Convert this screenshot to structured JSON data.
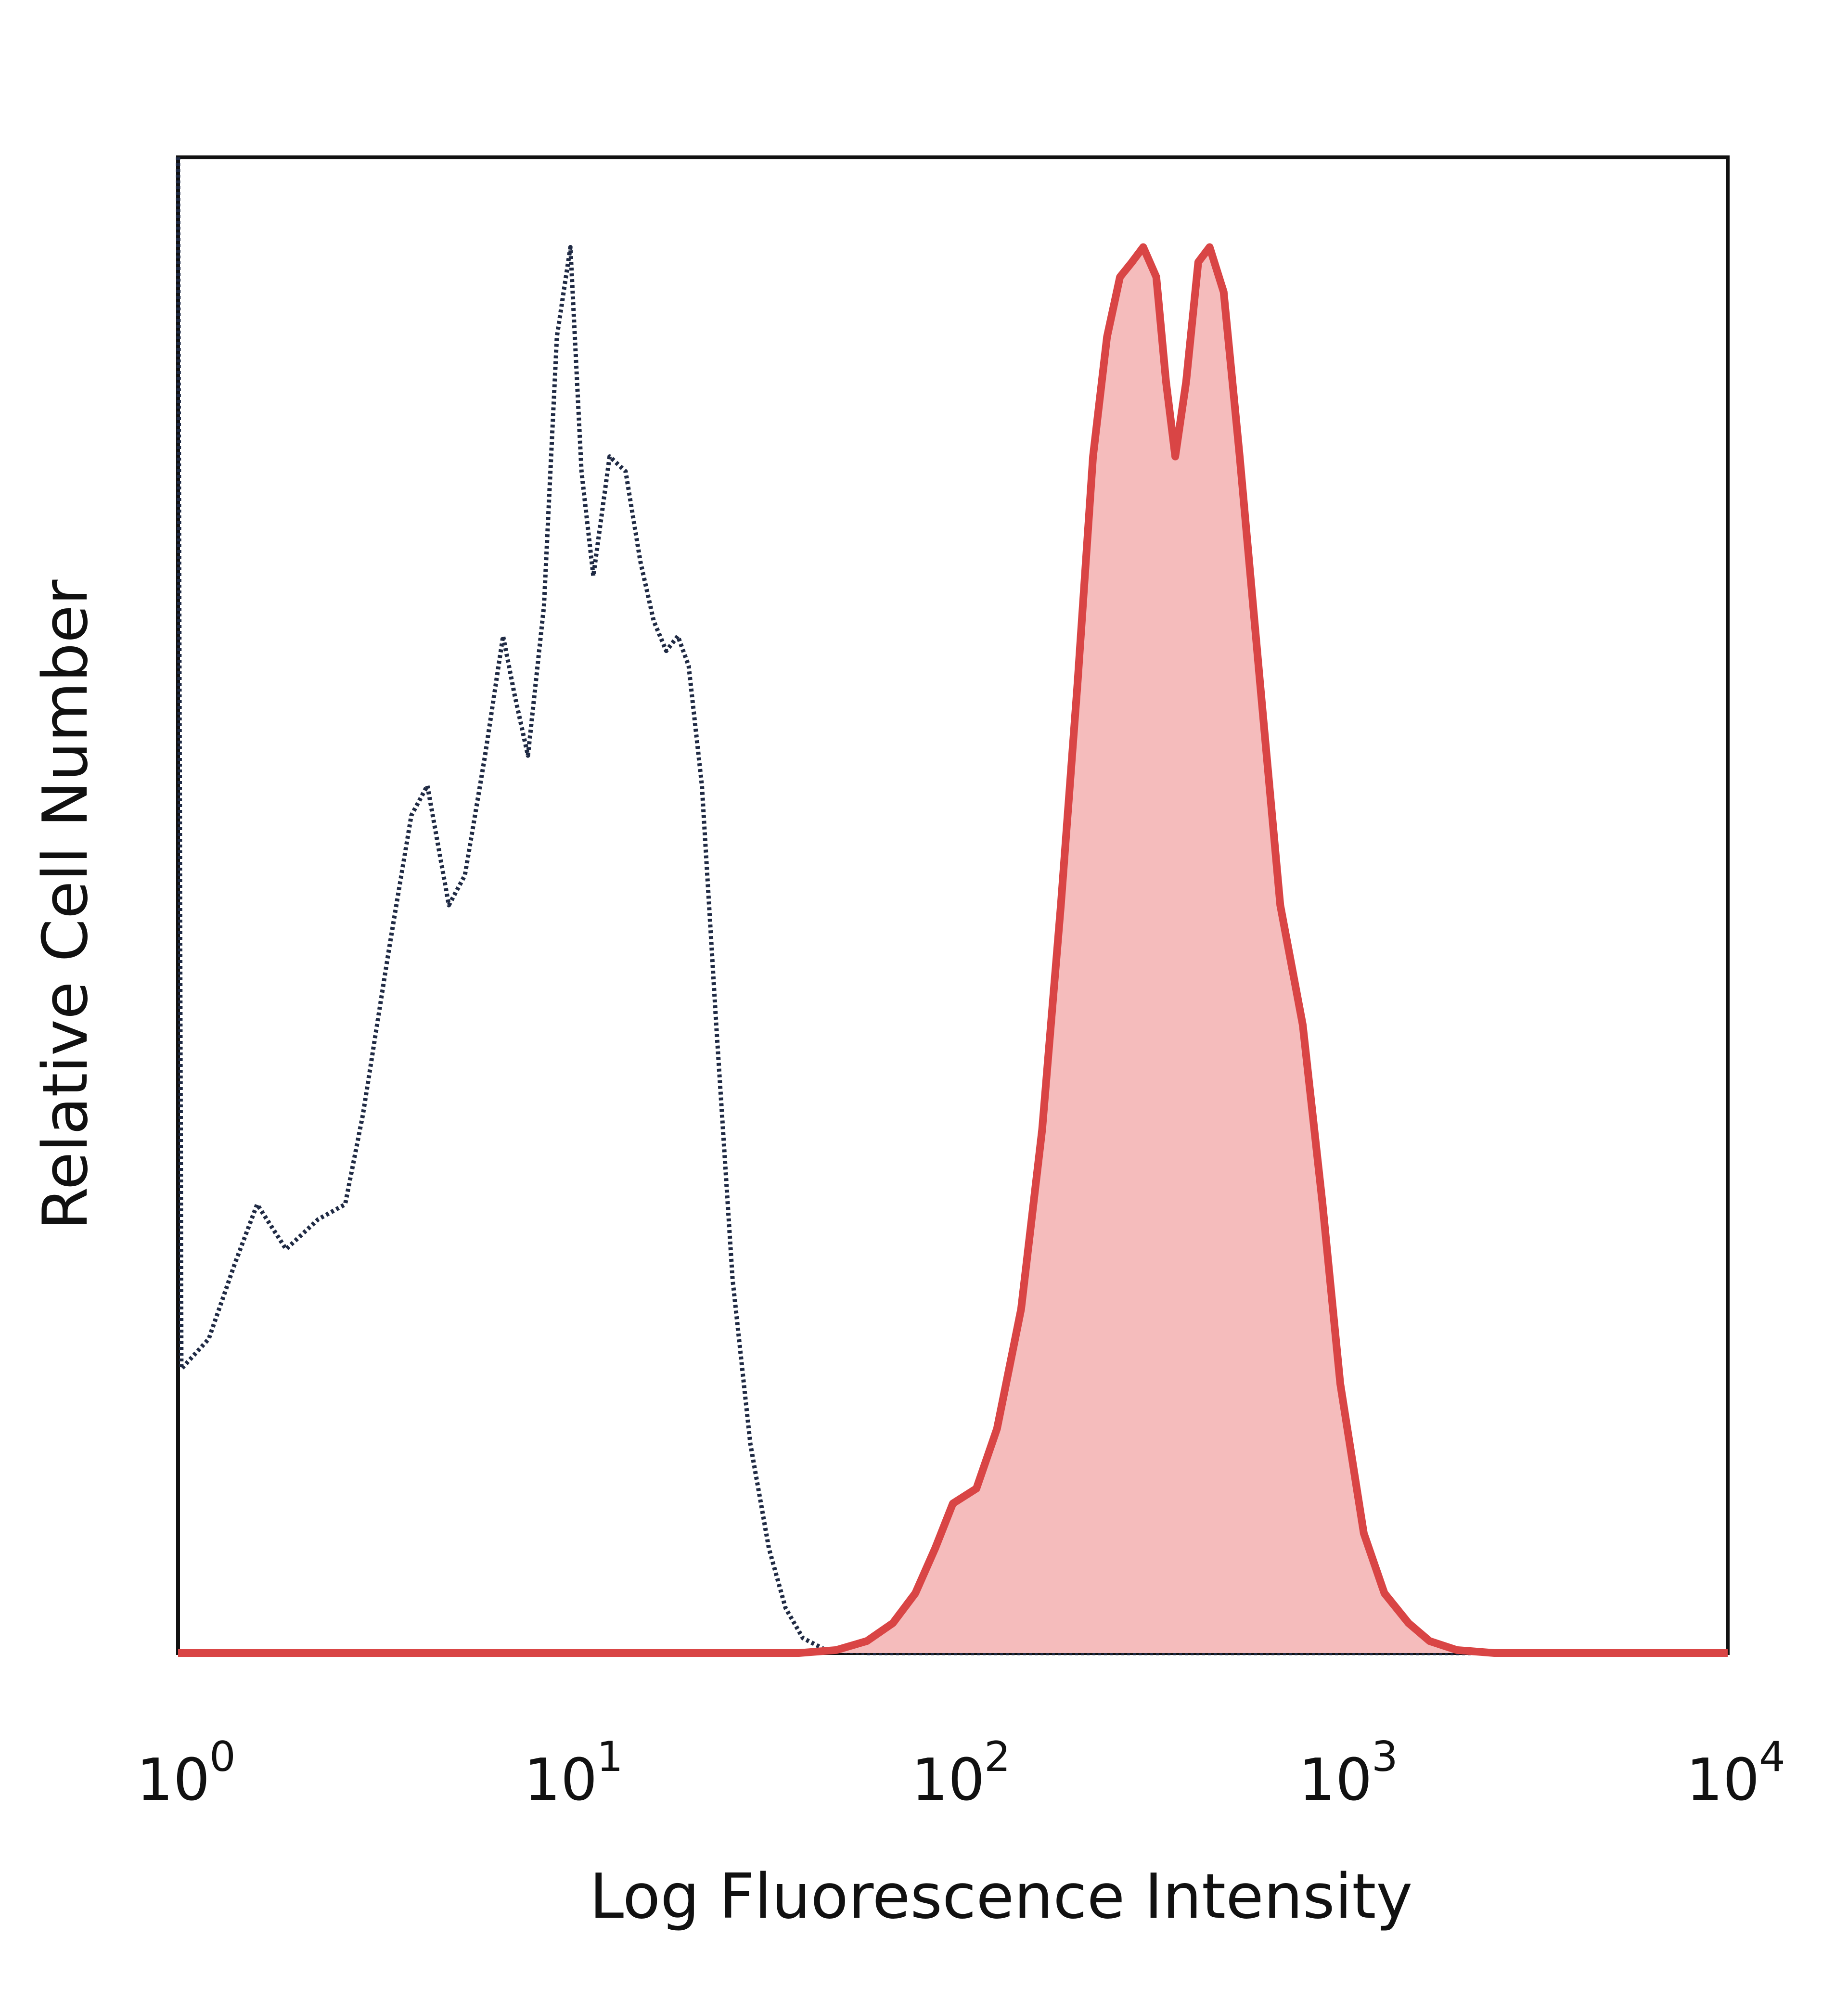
{
  "chart_data": {
    "type": "area",
    "xlabel": "Log Fluorescence Intensity",
    "ylabel": "Relative Cell Number",
    "x_scale": "log",
    "xlim": [
      1,
      10000
    ],
    "ylim": [
      0,
      100
    ],
    "x_ticks": [
      {
        "value": 1,
        "base": "10",
        "exp": "0"
      },
      {
        "value": 10,
        "base": "10",
        "exp": "1"
      },
      {
        "value": 100,
        "base": "10",
        "exp": "2"
      },
      {
        "value": 1000,
        "base": "10",
        "exp": "3"
      },
      {
        "value": 10000,
        "base": "10",
        "exp": "4"
      }
    ],
    "grid": false,
    "legend": "none",
    "series": [
      {
        "style": "dotted",
        "color": "#1f2a44",
        "fill": false,
        "points": [
          [
            1.0,
            100
          ],
          [
            1.02,
            19
          ],
          [
            1.2,
            21
          ],
          [
            1.4,
            26
          ],
          [
            1.6,
            30
          ],
          [
            1.9,
            27
          ],
          [
            2.3,
            29
          ],
          [
            2.7,
            30
          ],
          [
            3.0,
            36
          ],
          [
            3.5,
            47
          ],
          [
            4.0,
            56
          ],
          [
            4.4,
            58
          ],
          [
            5.0,
            50
          ],
          [
            5.5,
            52
          ],
          [
            6.2,
            60
          ],
          [
            6.9,
            68
          ],
          [
            7.4,
            64
          ],
          [
            8.0,
            60
          ],
          [
            8.8,
            70
          ],
          [
            9.5,
            88
          ],
          [
            10.3,
            94
          ],
          [
            11.0,
            79
          ],
          [
            11.8,
            72
          ],
          [
            13.0,
            80
          ],
          [
            14.3,
            79
          ],
          [
            15.6,
            73
          ],
          [
            16.9,
            69
          ],
          [
            18.2,
            67
          ],
          [
            19.5,
            68
          ],
          [
            20.8,
            66
          ],
          [
            22.5,
            58
          ],
          [
            24.5,
            42
          ],
          [
            27.0,
            25
          ],
          [
            30.0,
            14
          ],
          [
            33.5,
            7
          ],
          [
            37.0,
            3
          ],
          [
            41.0,
            1
          ],
          [
            47.0,
            0.2
          ],
          [
            60.0,
            0
          ],
          [
            100.0,
            0
          ],
          [
            1000.0,
            0
          ],
          [
            10000.0,
            0
          ]
        ]
      },
      {
        "style": "solid",
        "color": "#d94545",
        "fill": true,
        "fill_color": "#f5bcbc",
        "points": [
          [
            1.0,
            0
          ],
          [
            40.0,
            0
          ],
          [
            50.0,
            0.2
          ],
          [
            60.0,
            0.8
          ],
          [
            70.0,
            2
          ],
          [
            80.0,
            4
          ],
          [
            90.0,
            7
          ],
          [
            100.0,
            10
          ],
          [
            115.0,
            11
          ],
          [
            130.0,
            15
          ],
          [
            150.0,
            23
          ],
          [
            170.0,
            35
          ],
          [
            190.0,
            50
          ],
          [
            210.0,
            65
          ],
          [
            230.0,
            80
          ],
          [
            250.0,
            88
          ],
          [
            270.0,
            92
          ],
          [
            290.0,
            93
          ],
          [
            310.0,
            94
          ],
          [
            335.0,
            92
          ],
          [
            355.0,
            85
          ],
          [
            375.0,
            80
          ],
          [
            400.0,
            85
          ],
          [
            430.0,
            93
          ],
          [
            460.0,
            94
          ],
          [
            500.0,
            91
          ],
          [
            550.0,
            80
          ],
          [
            620.0,
            65
          ],
          [
            700.0,
            50
          ],
          [
            800.0,
            42
          ],
          [
            900.0,
            30
          ],
          [
            1000.0,
            18
          ],
          [
            1150.0,
            8
          ],
          [
            1300.0,
            4
          ],
          [
            1500.0,
            2
          ],
          [
            1700.0,
            0.8
          ],
          [
            2000.0,
            0.2
          ],
          [
            2500.0,
            0
          ],
          [
            10000.0,
            0
          ]
        ]
      }
    ]
  }
}
